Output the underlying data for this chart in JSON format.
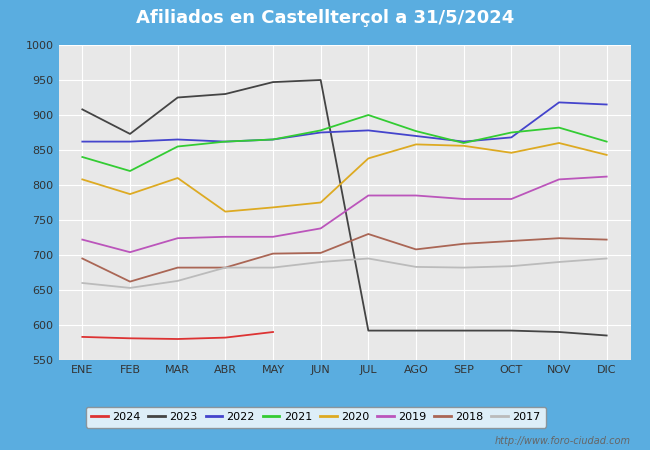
{
  "title": "Afiliados en Castellterçol a 31/5/2024",
  "title_color": "#ffffff",
  "title_bg_color": "#5aade0",
  "watermark": "http://www.foro-ciudad.com",
  "ylim": [
    550,
    1000
  ],
  "yticks": [
    550,
    600,
    650,
    700,
    750,
    800,
    850,
    900,
    950,
    1000
  ],
  "months": [
    "ENE",
    "FEB",
    "MAR",
    "ABR",
    "MAY",
    "JUN",
    "JUL",
    "AGO",
    "SEP",
    "OCT",
    "NOV",
    "DIC"
  ],
  "series": {
    "2024": {
      "color": "#dd3333",
      "data": [
        583,
        581,
        580,
        582,
        590,
        null,
        null,
        null,
        null,
        null,
        null,
        null
      ]
    },
    "2023": {
      "color": "#444444",
      "data": [
        908,
        873,
        925,
        930,
        947,
        950,
        592,
        592,
        592,
        592,
        590,
        585
      ]
    },
    "2022": {
      "color": "#4444cc",
      "data": [
        862,
        862,
        865,
        862,
        865,
        875,
        878,
        870,
        862,
        868,
        918,
        915
      ]
    },
    "2021": {
      "color": "#33cc33",
      "data": [
        840,
        820,
        855,
        862,
        865,
        878,
        900,
        877,
        860,
        875,
        882,
        862
      ]
    },
    "2020": {
      "color": "#ddaa22",
      "data": [
        808,
        787,
        810,
        762,
        768,
        775,
        838,
        858,
        856,
        846,
        860,
        843
      ]
    },
    "2019": {
      "color": "#bb55bb",
      "data": [
        722,
        704,
        724,
        726,
        726,
        738,
        785,
        785,
        780,
        780,
        808,
        812
      ]
    },
    "2018": {
      "color": "#aa6655",
      "data": [
        695,
        662,
        682,
        682,
        702,
        703,
        730,
        708,
        716,
        720,
        724,
        722
      ]
    },
    "2017": {
      "color": "#bbbbbb",
      "data": [
        660,
        653,
        663,
        682,
        682,
        690,
        695,
        683,
        682,
        684,
        690,
        695
      ]
    }
  },
  "series_order": [
    "2024",
    "2023",
    "2022",
    "2021",
    "2020",
    "2019",
    "2018",
    "2017"
  ]
}
